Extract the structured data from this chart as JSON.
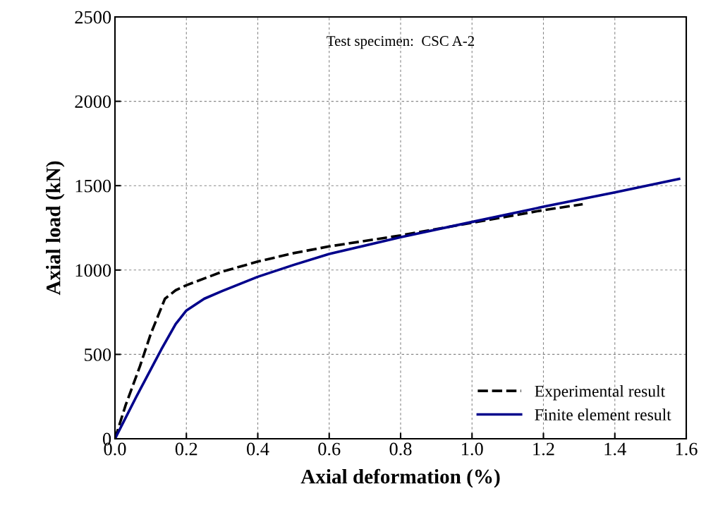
{
  "chart_data": {
    "type": "line",
    "xlabel": "Axial deformation (%)",
    "ylabel": "Axial load (kN)",
    "annotations": [
      "Test specimen:  CSC A-2"
    ],
    "xlim": [
      0,
      1.6
    ],
    "xticks": [
      {
        "value": 0,
        "label": "0.0"
      },
      {
        "value": 0.2,
        "label": "0.2"
      },
      {
        "value": 0.4,
        "label": "0.4"
      },
      {
        "value": 0.6,
        "label": "0.6"
      },
      {
        "value": 0.8,
        "label": "0.8"
      },
      {
        "value": 1.0,
        "label": "1.0"
      },
      {
        "value": 1.2,
        "label": "1.2"
      },
      {
        "value": 1.4,
        "label": "1.4"
      },
      {
        "value": 1.6,
        "label": "1.6"
      }
    ],
    "ylim": [
      0,
      2500
    ],
    "yticks": [
      0,
      500,
      1000,
      1500,
      2000,
      2500
    ],
    "grid": true,
    "legend": "bottom right",
    "series": [
      {
        "name": "Experimental result",
        "color": "#000000",
        "line_style": "dashed",
        "x": [
          0,
          0.03,
          0.07,
          0.1,
          0.14,
          0.17,
          0.2,
          0.3,
          0.4,
          0.5,
          0.6,
          0.8,
          1.0,
          1.2,
          1.31
        ],
        "values": [
          0,
          200,
          430,
          620,
          830,
          880,
          910,
          990,
          1050,
          1100,
          1140,
          1205,
          1280,
          1355,
          1390
        ]
      },
      {
        "name": "Finite element result",
        "color": "#00008b",
        "line_style": "solid",
        "x": [
          0,
          0.06,
          0.13,
          0.17,
          0.2,
          0.25,
          0.3,
          0.4,
          0.5,
          0.6,
          0.8,
          1.0,
          1.2,
          1.4,
          1.58
        ],
        "values": [
          0,
          250,
          530,
          680,
          760,
          830,
          875,
          960,
          1030,
          1095,
          1195,
          1285,
          1375,
          1460,
          1540
        ]
      }
    ]
  }
}
